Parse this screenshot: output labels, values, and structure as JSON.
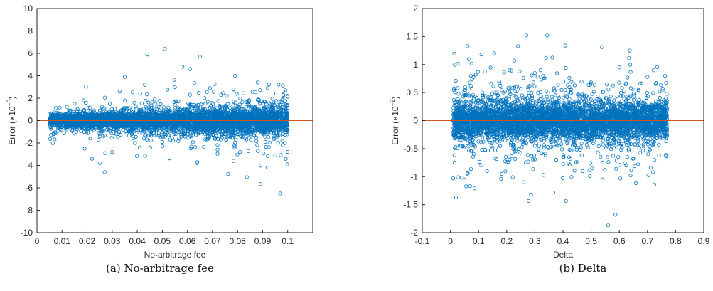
{
  "chart_data": [
    {
      "type": "scatter",
      "caption": "(a) No-arbitrage fee",
      "xlabel": "No-arbitrage fee",
      "ylabel_prefix": "Error (",
      "ylabel_times": "×10",
      "ylabel_exp": "−3",
      "ylabel_suffix": ")",
      "xlim": [
        0,
        0.11
      ],
      "ylim": [
        -10,
        10
      ],
      "xticks": [
        "0",
        "0.01",
        "0.02",
        "0.03",
        "0.04",
        "0.05",
        "0.06",
        "0.07",
        "0.08",
        "0.09",
        "0.1"
      ],
      "yticks": [
        "-10",
        "-8",
        "-6",
        "-4",
        "-2",
        "0",
        "2",
        "4",
        "6",
        "8",
        "10"
      ],
      "reference_line_y": 0,
      "marker_color": "#0072BD",
      "line_color": "#D95319",
      "x_range": [
        0.005,
        0.1
      ],
      "error_band": [
        -0.9,
        0.9
      ],
      "n_points": 5000,
      "outliers": [
        {
          "x": 0.044,
          "y": 5.9
        },
        {
          "x": 0.051,
          "y": 6.4
        },
        {
          "x": 0.065,
          "y": 5.7
        },
        {
          "x": 0.097,
          "y": -6.5
        },
        {
          "x": 0.027,
          "y": -4.6
        },
        {
          "x": 0.025,
          "y": -3.8
        },
        {
          "x": 0.022,
          "y": -3.4
        },
        {
          "x": 0.035,
          "y": 3.9
        },
        {
          "x": 0.064,
          "y": -3.7
        },
        {
          "x": 0.079,
          "y": 4.0
        },
        {
          "x": 0.058,
          "y": 4.8
        },
        {
          "x": 0.061,
          "y": 4.6
        },
        {
          "x": 0.043,
          "y": 3.2
        },
        {
          "x": 0.088,
          "y": 3.4
        },
        {
          "x": 0.092,
          "y": 2.9
        },
        {
          "x": 0.03,
          "y": -2.8
        },
        {
          "x": 0.041,
          "y": -2.4
        },
        {
          "x": 0.072,
          "y": -2.6
        },
        {
          "x": 0.081,
          "y": -2.8
        },
        {
          "x": 0.095,
          "y": -3.1
        },
        {
          "x": 0.055,
          "y": 3.0
        },
        {
          "x": 0.069,
          "y": 2.9
        },
        {
          "x": 0.019,
          "y": -2.5
        },
        {
          "x": 0.033,
          "y": 2.6
        }
      ]
    },
    {
      "type": "scatter",
      "caption": "(b)  Delta",
      "xlabel": "Delta",
      "ylabel_prefix": "Error (",
      "ylabel_times": "×10",
      "ylabel_exp": "−2",
      "ylabel_suffix": ")",
      "xlim": [
        -0.1,
        0.9
      ],
      "ylim": [
        -2,
        2
      ],
      "xticks": [
        "-0.1",
        "0",
        "0.1",
        "0.2",
        "0.3",
        "0.4",
        "0.5",
        "0.6",
        "0.7",
        "0.8",
        "0.9"
      ],
      "yticks": [
        "-2",
        "-1.5",
        "-1",
        "-0.5",
        "0",
        "0.5",
        "1",
        "1.5",
        "2"
      ],
      "reference_line_y": 0,
      "marker_color": "#0072BD",
      "line_color": "#D95319",
      "x_range": [
        0.01,
        0.77
      ],
      "error_band": [
        -0.35,
        0.35
      ],
      "n_points": 5000,
      "outliers": [
        {
          "x": 0.27,
          "y": 1.52
        },
        {
          "x": 0.24,
          "y": 1.33
        },
        {
          "x": 0.06,
          "y": 1.33
        },
        {
          "x": 0.11,
          "y": 1.18
        },
        {
          "x": 0.34,
          "y": 1.12
        },
        {
          "x": 0.01,
          "y": -1.03
        },
        {
          "x": 0.02,
          "y": -1.37
        },
        {
          "x": 0.07,
          "y": -1.17
        },
        {
          "x": 0.04,
          "y": -1.02
        },
        {
          "x": 0.56,
          "y": -1.87
        },
        {
          "x": 0.18,
          "y": -1.04
        },
        {
          "x": 0.26,
          "y": -1.1
        },
        {
          "x": 0.54,
          "y": -1.05
        },
        {
          "x": 0.72,
          "y": -0.92
        },
        {
          "x": 0.6,
          "y": 0.95
        },
        {
          "x": 0.21,
          "y": 0.9
        },
        {
          "x": 0.41,
          "y": 0.94
        },
        {
          "x": 0.13,
          "y": -0.9
        },
        {
          "x": 0.05,
          "y": -1.05
        },
        {
          "x": 0.7,
          "y": 0.78
        },
        {
          "x": 0.47,
          "y": -0.9
        },
        {
          "x": 0.3,
          "y": 0.85
        },
        {
          "x": 0.64,
          "y": -0.98
        },
        {
          "x": 0.09,
          "y": 0.82
        }
      ]
    }
  ]
}
